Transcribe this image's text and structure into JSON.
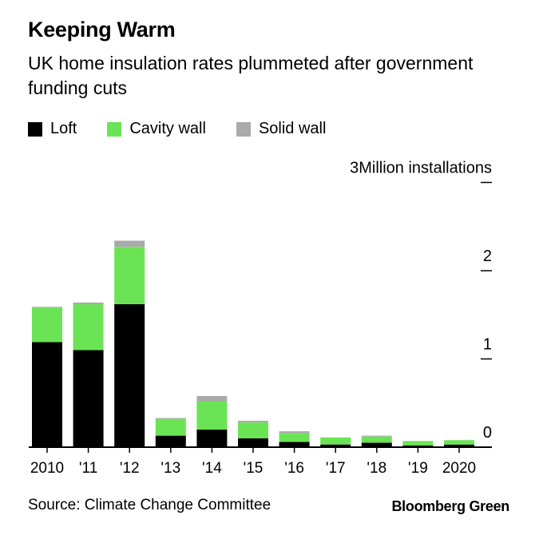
{
  "chart_data": {
    "type": "bar",
    "stacked": true,
    "title": "Keeping Warm",
    "subtitle": "UK home insulation rates plummeted after government funding cuts",
    "categories": [
      "2010",
      "'11",
      "'12",
      "'13",
      "'14",
      "'15",
      "'16",
      "'17",
      "'18",
      "'19",
      "2020"
    ],
    "series": [
      {
        "name": "Loft",
        "color": "#000000",
        "values": [
          1.19,
          1.1,
          1.62,
          0.13,
          0.2,
          0.1,
          0.06,
          0.03,
          0.05,
          0.02,
          0.03
        ]
      },
      {
        "name": "Cavity wall",
        "color": "#6ae455",
        "values": [
          0.39,
          0.52,
          0.65,
          0.19,
          0.32,
          0.18,
          0.1,
          0.08,
          0.07,
          0.05,
          0.05
        ]
      },
      {
        "name": "Solid wall",
        "color": "#aaaaaa",
        "values": [
          0.01,
          0.02,
          0.07,
          0.01,
          0.06,
          0.02,
          0.02,
          0.0,
          0.01,
          0.0,
          0.0
        ]
      }
    ],
    "ylim": [
      0,
      3
    ],
    "yticks": [
      {
        "value": 0,
        "label": "0"
      },
      {
        "value": 1,
        "label": "1"
      },
      {
        "value": 2,
        "label": "2"
      },
      {
        "value": 3,
        "label": "3Million installations"
      }
    ],
    "ylabel": "Million installations",
    "legend_position": "top-left",
    "source": "Source: Climate Change Committee",
    "brand": "Bloomberg Green"
  }
}
